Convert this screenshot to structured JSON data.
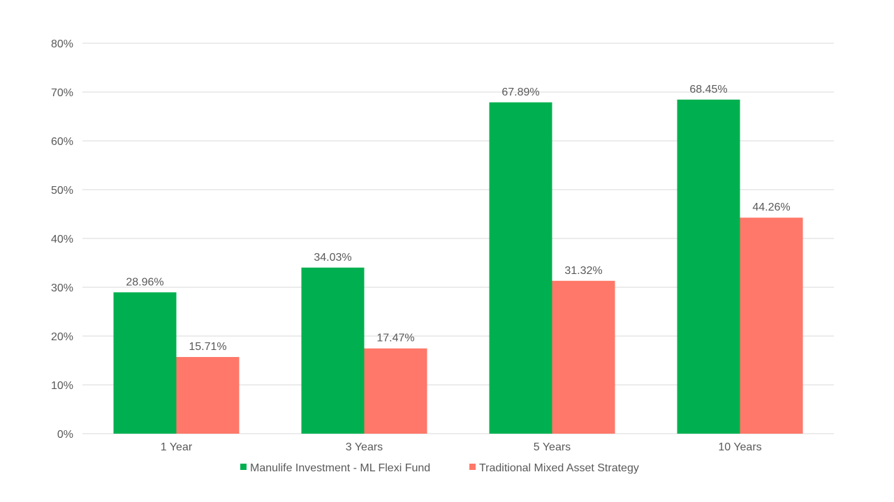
{
  "chart_data": {
    "type": "bar",
    "title": "",
    "xlabel": "",
    "ylabel": "",
    "categories": [
      "1 Year",
      "3 Years",
      "5 Years",
      "10 Years"
    ],
    "series": [
      {
        "name": "Manulife Investment - ML Flexi Fund",
        "color": "#00b050",
        "values": [
          28.96,
          34.03,
          67.89,
          68.45
        ],
        "labels": [
          "28.96%",
          "34.03%",
          "67.89%",
          "68.45%"
        ]
      },
      {
        "name": "Traditional Mixed Asset Strategy",
        "color": "#ff7869",
        "values": [
          15.71,
          17.47,
          31.32,
          44.26
        ],
        "labels": [
          "15.71%",
          "17.47%",
          "31.32%",
          "44.26%"
        ]
      }
    ],
    "ylim": [
      0,
      80
    ],
    "yticks": [
      0,
      10,
      20,
      30,
      40,
      50,
      60,
      70,
      80
    ],
    "ytick_labels": [
      "0%",
      "10%",
      "20%",
      "30%",
      "40%",
      "50%",
      "60%",
      "70%",
      "80%"
    ],
    "grid": true,
    "legend": "bottom"
  }
}
